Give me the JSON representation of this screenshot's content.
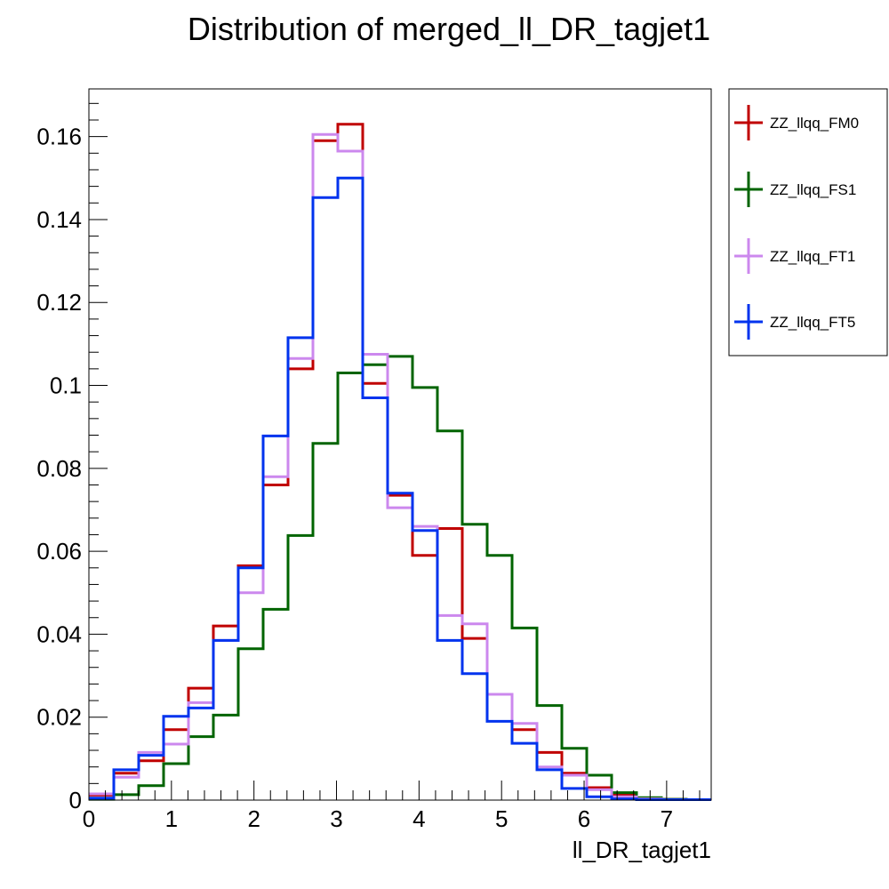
{
  "chart_data": {
    "type": "line",
    "style": "step-histogram",
    "title": "Distribution of merged_ll_DR_tagjet1",
    "xlabel": "ll_DR_tagjet1",
    "ylabel": "",
    "xlim": [
      0,
      7.54
    ],
    "ylim": [
      0,
      0.1715
    ],
    "x_ticks": [
      0,
      1,
      2,
      3,
      4,
      5,
      6,
      7
    ],
    "x_tick_labels": [
      "0",
      "1",
      "2",
      "3",
      "4",
      "5",
      "6",
      "7"
    ],
    "y_ticks": [
      0,
      0.02,
      0.04,
      0.06,
      0.08,
      0.1,
      0.12,
      0.14,
      0.16
    ],
    "y_tick_labels": [
      "0",
      "0.02",
      "0.04",
      "0.06",
      "0.08",
      "0.1",
      "0.12",
      "0.14",
      "0.16"
    ],
    "grid": false,
    "legend_position": "right",
    "bin_edges": [
      0,
      0.3016,
      0.6032,
      0.9048,
      1.2064,
      1.508,
      1.8096,
      2.1112,
      2.4128,
      2.7144,
      3.016,
      3.3176,
      3.6192,
      3.9208,
      4.2224,
      4.524,
      4.8256,
      5.1272,
      5.4288,
      5.7304,
      6.032,
      6.3336,
      6.6352,
      6.9368,
      7.2384,
      7.54
    ],
    "series": [
      {
        "name": "ZZ_llqq_FM0",
        "color": "#c00000",
        "values": [
          0.0012,
          0.0065,
          0.0095,
          0.017,
          0.027,
          0.042,
          0.0565,
          0.076,
          0.104,
          0.159,
          0.163,
          0.1005,
          0.0735,
          0.059,
          0.0655,
          0.039,
          0.0255,
          0.017,
          0.0115,
          0.0065,
          0.003,
          0.0012,
          0.0005,
          0.0002,
          0.0001
        ]
      },
      {
        "name": "ZZ_llqq_FS1",
        "color": "#006400",
        "values": [
          0.0002,
          0.0013,
          0.0035,
          0.0088,
          0.0153,
          0.0205,
          0.0365,
          0.046,
          0.0638,
          0.086,
          0.103,
          0.105,
          0.107,
          0.0995,
          0.089,
          0.0665,
          0.059,
          0.0415,
          0.0228,
          0.0125,
          0.006,
          0.0018,
          0.0006,
          0.0002,
          0.0001
        ]
      },
      {
        "name": "ZZ_llqq_FT1",
        "color": "#cc88ee",
        "values": [
          0.0015,
          0.0055,
          0.0115,
          0.0135,
          0.0235,
          0.0385,
          0.05,
          0.078,
          0.1065,
          0.1605,
          0.1565,
          0.1075,
          0.0705,
          0.066,
          0.0445,
          0.0425,
          0.0255,
          0.0185,
          0.008,
          0.006,
          0.0025,
          0.0008,
          0.0003,
          0.0001,
          0.0001
        ]
      },
      {
        "name": "ZZ_llqq_FT5",
        "color": "#0033ee",
        "values": [
          0.0005,
          0.0073,
          0.0108,
          0.0202,
          0.0222,
          0.0385,
          0.056,
          0.0878,
          0.1115,
          0.1453,
          0.15,
          0.097,
          0.074,
          0.065,
          0.0385,
          0.0305,
          0.019,
          0.0137,
          0.0073,
          0.0028,
          0.0008,
          0.0003,
          0.0001,
          0.0001,
          0.0001
        ]
      }
    ]
  },
  "legend": {
    "items": [
      {
        "label": "ZZ_llqq_FM0",
        "color": "#c00000"
      },
      {
        "label": "ZZ_llqq_FS1",
        "color": "#006400"
      },
      {
        "label": "ZZ_llqq_FT1",
        "color": "#cc88ee"
      },
      {
        "label": "ZZ_llqq_FT5",
        "color": "#0033ee"
      }
    ]
  }
}
